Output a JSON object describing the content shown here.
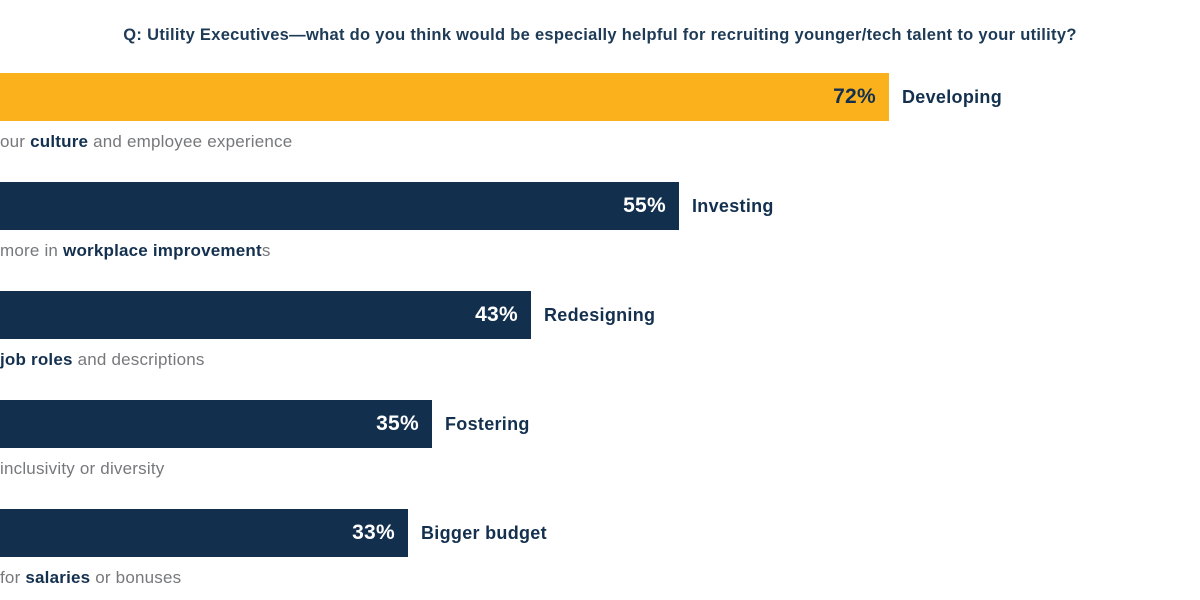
{
  "title": "Q: Utility Executives—what do you think would be especially helpful for recruiting younger/tech talent to your utility?",
  "colors": {
    "navy": "#12304e",
    "orange": "#fbb11c",
    "gray_text": "#77787b",
    "navy_text": "#14304f",
    "white": "#ffffff"
  },
  "chart_data": {
    "type": "bar",
    "orientation": "horizontal",
    "title": "Q: Utility Executives—what do you think would be especially helpful for recruiting younger/tech talent to your utility?",
    "categories": [
      "Developing our culture and employee experience",
      "Investing more in workplace improvements",
      "Redesigning job roles and descriptions",
      "Fostering inclusivity or diversity",
      "Bigger budget for salaries or bonuses"
    ],
    "values": [
      72,
      55,
      43,
      35,
      33
    ],
    "value_labels": [
      "72%",
      "55%",
      "43%",
      "35%",
      "33%"
    ],
    "xlim": [
      0,
      100
    ],
    "grid": false,
    "legend": false,
    "bar_colors": [
      "#fbb11c",
      "#12304e",
      "#12304e",
      "#12304e",
      "#12304e"
    ]
  },
  "bars": [
    {
      "value": 72,
      "pct_label": "72%",
      "label": "Developing",
      "bar_color": "#fbb11c",
      "pct_color": "#14304f",
      "caption": [
        {
          "text": "our ",
          "bold": false
        },
        {
          "text": "culture",
          "bold": true
        },
        {
          "text": " and employee experience",
          "bold": false
        }
      ]
    },
    {
      "value": 55,
      "pct_label": "55%",
      "label": "Investing",
      "bar_color": "#12304e",
      "pct_color": "#ffffff",
      "caption": [
        {
          "text": "more in ",
          "bold": false
        },
        {
          "text": "workplace improvement",
          "bold": true
        },
        {
          "text": "s",
          "bold": false
        }
      ]
    },
    {
      "value": 43,
      "pct_label": "43%",
      "label": "Redesigning",
      "bar_color": "#12304e",
      "pct_color": "#ffffff",
      "caption": [
        {
          "text": "job roles",
          "bold": true
        },
        {
          "text": " and descriptions",
          "bold": false
        }
      ]
    },
    {
      "value": 35,
      "pct_label": "35%",
      "label": "Fostering",
      "bar_color": "#12304e",
      "pct_color": "#ffffff",
      "caption": [
        {
          "text": "inclusivity or diversity",
          "bold": false
        }
      ]
    },
    {
      "value": 33,
      "pct_label": "33%",
      "label": "Bigger budget",
      "bar_color": "#12304e",
      "pct_color": "#ffffff",
      "caption": [
        {
          "text": "for ",
          "bold": false
        },
        {
          "text": "salaries",
          "bold": true
        },
        {
          "text": " or bonuses",
          "bold": false
        }
      ]
    }
  ]
}
